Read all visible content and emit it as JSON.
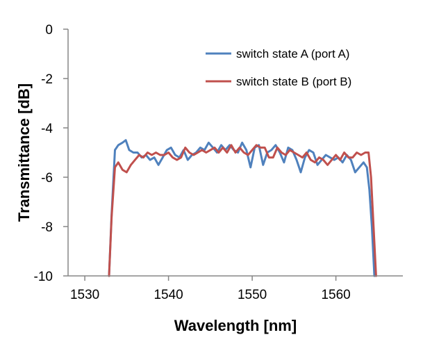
{
  "chart_data": {
    "type": "line",
    "title": "",
    "xlabel": "Wavelength [nm]",
    "ylabel": "Transmittance [dB]",
    "xlim": [
      1528,
      1568
    ],
    "ylim": [
      -10,
      0
    ],
    "xticks": [
      1530,
      1540,
      1550,
      1560
    ],
    "yticks": [
      0,
      -2,
      -4,
      -6,
      -8,
      -10
    ],
    "grid": false,
    "legend_position": "top-right",
    "series": [
      {
        "name": "switch state A (port A)",
        "color": "#4f81bd",
        "x": [
          1532.9,
          1533.2,
          1533.6,
          1534.0,
          1534.5,
          1534.9,
          1535.3,
          1535.8,
          1536.3,
          1536.8,
          1537.3,
          1537.8,
          1538.3,
          1538.8,
          1539.3,
          1539.8,
          1540.3,
          1540.8,
          1541.3,
          1541.8,
          1542.3,
          1542.8,
          1543.3,
          1543.8,
          1544.3,
          1544.8,
          1545.3,
          1545.8,
          1546.3,
          1546.8,
          1547.3,
          1547.8,
          1548.3,
          1548.8,
          1549.3,
          1549.8,
          1550.3,
          1550.8,
          1551.3,
          1551.8,
          1552.3,
          1552.8,
          1553.3,
          1553.8,
          1554.3,
          1554.8,
          1555.3,
          1555.8,
          1556.3,
          1556.8,
          1557.3,
          1557.8,
          1558.3,
          1558.8,
          1559.3,
          1559.8,
          1560.3,
          1560.8,
          1561.3,
          1561.8,
          1562.3,
          1562.8,
          1563.3,
          1563.7,
          1564.0,
          1564.3,
          1564.6
        ],
        "y": [
          -10.0,
          -7.5,
          -4.9,
          -4.7,
          -4.6,
          -4.5,
          -4.9,
          -5.0,
          -5.0,
          -5.2,
          -5.1,
          -5.3,
          -5.2,
          -5.5,
          -5.2,
          -4.9,
          -4.8,
          -5.1,
          -5.2,
          -4.9,
          -5.3,
          -5.1,
          -5.0,
          -4.8,
          -4.9,
          -4.6,
          -4.8,
          -5.0,
          -4.7,
          -4.9,
          -4.7,
          -4.9,
          -5.0,
          -4.6,
          -4.9,
          -5.6,
          -4.8,
          -4.7,
          -5.5,
          -5.0,
          -4.9,
          -4.7,
          -5.0,
          -5.4,
          -4.8,
          -4.9,
          -5.3,
          -5.8,
          -5.2,
          -4.9,
          -5.0,
          -5.5,
          -5.3,
          -5.1,
          -5.2,
          -5.3,
          -5.2,
          -5.4,
          -5.1,
          -5.3,
          -5.8,
          -5.6,
          -5.4,
          -5.6,
          -6.5,
          -8.0,
          -10.0
        ]
      },
      {
        "name": "switch state B (port B)",
        "color": "#c0504d",
        "x": [
          1532.9,
          1533.2,
          1533.6,
          1534.0,
          1534.5,
          1535.0,
          1535.5,
          1536.0,
          1536.5,
          1537.0,
          1537.5,
          1538.0,
          1538.5,
          1539.0,
          1539.5,
          1540.0,
          1540.5,
          1541.0,
          1541.5,
          1542.0,
          1542.5,
          1543.0,
          1543.5,
          1544.0,
          1544.5,
          1545.0,
          1545.5,
          1546.0,
          1546.5,
          1547.0,
          1547.5,
          1548.0,
          1548.5,
          1549.0,
          1549.5,
          1550.0,
          1550.5,
          1551.0,
          1551.5,
          1552.0,
          1552.5,
          1553.0,
          1553.5,
          1554.0,
          1554.5,
          1555.0,
          1555.5,
          1556.0,
          1556.5,
          1557.0,
          1557.5,
          1558.0,
          1558.5,
          1559.0,
          1559.5,
          1560.0,
          1560.5,
          1561.0,
          1561.5,
          1562.0,
          1562.5,
          1563.0,
          1563.5,
          1563.9,
          1564.2,
          1564.5,
          1564.8
        ],
        "y": [
          -10.0,
          -7.6,
          -5.6,
          -5.4,
          -5.7,
          -5.8,
          -5.5,
          -5.3,
          -5.1,
          -5.2,
          -5.0,
          -5.1,
          -5.0,
          -5.1,
          -5.1,
          -5.0,
          -5.2,
          -5.3,
          -5.2,
          -4.8,
          -5.0,
          -5.1,
          -5.0,
          -4.9,
          -5.0,
          -4.9,
          -4.8,
          -5.0,
          -4.8,
          -5.0,
          -4.7,
          -5.0,
          -4.8,
          -5.0,
          -5.1,
          -4.9,
          -4.7,
          -4.8,
          -4.8,
          -5.2,
          -5.2,
          -4.8,
          -5.0,
          -5.1,
          -4.9,
          -5.0,
          -5.1,
          -5.2,
          -5.0,
          -5.3,
          -5.4,
          -5.2,
          -5.3,
          -5.5,
          -5.3,
          -5.1,
          -5.3,
          -5.0,
          -5.2,
          -5.2,
          -5.0,
          -5.1,
          -5.0,
          -5.0,
          -6.0,
          -8.0,
          -10.0
        ]
      }
    ]
  }
}
